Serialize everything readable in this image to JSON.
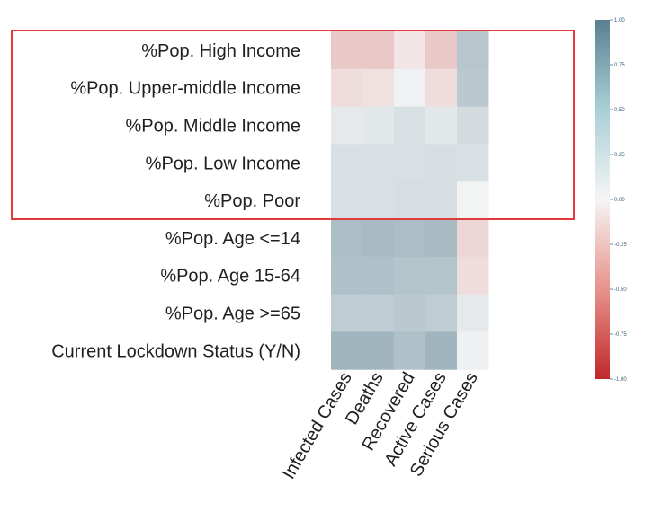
{
  "chart_data": {
    "type": "heatmap",
    "rows": [
      "%Pop. High Income",
      "%Pop. Upper-middle Income",
      "%Pop. Middle Income",
      "%Pop. Low Income",
      "%Pop. Poor",
      "%Pop. Age <=14",
      "%Pop. Age 15-64",
      "%Pop. Age >=65",
      "Current Lockdown Status (Y/N)"
    ],
    "columns": [
      "Infected Cases",
      "Deaths",
      "Recovered",
      "Active Cases",
      "Serious Cases"
    ],
    "values": [
      [
        -0.22,
        -0.22,
        -0.08,
        -0.22,
        0.4
      ],
      [
        -0.12,
        -0.1,
        0.03,
        -0.12,
        0.38
      ],
      [
        0.1,
        0.12,
        0.18,
        0.12,
        0.22
      ],
      [
        0.18,
        0.18,
        0.18,
        0.2,
        0.18
      ],
      [
        0.18,
        0.18,
        0.2,
        0.2,
        0.02
      ],
      [
        0.48,
        0.5,
        0.48,
        0.5,
        -0.15
      ],
      [
        0.45,
        0.45,
        0.42,
        0.42,
        -0.12
      ],
      [
        0.35,
        0.35,
        0.38,
        0.35,
        0.1
      ],
      [
        0.55,
        0.55,
        0.45,
        0.55,
        0.04
      ]
    ],
    "vmin": -1.0,
    "vmax": 1.0,
    "colorbar_ticks": [
      "1.00",
      "0.75",
      "0.50",
      "0.25",
      "0.00",
      "-0.25",
      "-0.50",
      "-0.75",
      "-1.00"
    ],
    "colors": {
      "negative": "#c0282a",
      "neutral": "#f5f5f5",
      "positive": "#5a8090"
    },
    "highlight": {
      "rows": [
        0,
        4
      ],
      "color": "#e03a3a"
    }
  }
}
